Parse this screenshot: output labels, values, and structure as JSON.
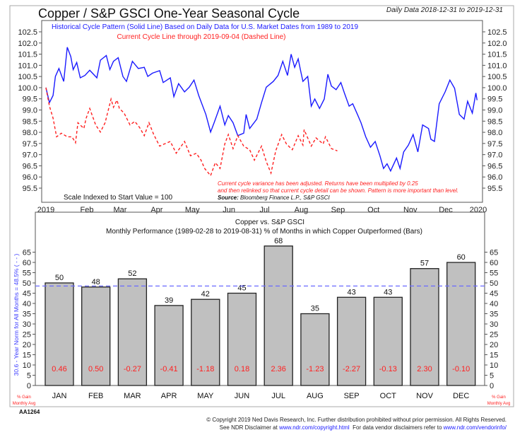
{
  "header": {
    "title": "Copper / S&P GSCI One-Year Seasonal Cycle",
    "date_range": "Daily Data 2018-12-31 to 2019-12-31"
  },
  "colors": {
    "historical": "#1a1aff",
    "current": "#ff2020",
    "bar": "#c0c0c0",
    "norm": "#6a6aff",
    "gain": "#ff2020"
  },
  "chart_data": [
    {
      "type": "line",
      "legend_historical": "Historical Cycle Pattern (Solid Line) Based on Daily Data for U.S. Market Dates from 1989 to 2019",
      "legend_current": "Current Cycle Line through 2019-09-04 (Dashed Line)",
      "scale_note": "Scale Indexed to Start Value = 100",
      "note_line1": "Current cycle variance has been adjusted. Returns have been multiplied by 0.25",
      "note_line2": "and then relinked so that current cycle detail can be shown. Pattern is more important than level.",
      "source_label": "Source:",
      "source_text": "Bloomberg Finance L.P., S&P GSCI",
      "xlim": [
        "2019-01-01",
        "2020-01-01"
      ],
      "ylim": [
        95.2,
        102.8
      ],
      "x_tick_labels": [
        "2019",
        "Feb",
        "Mar",
        "Apr",
        "May",
        "Jun",
        "Jul",
        "Aug",
        "Sep",
        "Oct",
        "Nov",
        "Dec",
        "2020"
      ],
      "y_tick_labels": [
        "102.5",
        "102.0",
        "101.5",
        "101.0",
        "100.5",
        "100.0",
        "99.5",
        "99.0",
        "98.5",
        "98.0",
        "97.5",
        "97.0",
        "96.5",
        "96.0",
        "95.5"
      ],
      "series": [
        {
          "style": "solid",
          "points": [
            [
              "2019-01-01",
              100.0
            ],
            [
              "2019-01-04",
              99.33
            ],
            [
              "2019-01-07",
              99.65
            ],
            [
              "2019-01-09",
              100.5
            ],
            [
              "2019-01-12",
              100.86
            ],
            [
              "2019-01-16",
              100.28
            ],
            [
              "2019-01-19",
              101.81
            ],
            [
              "2019-01-22",
              101.39
            ],
            [
              "2019-01-24",
              100.81
            ],
            [
              "2019-01-27",
              101.13
            ],
            [
              "2019-01-30",
              100.44
            ],
            [
              "2019-02-03",
              100.55
            ],
            [
              "2019-02-07",
              100.78
            ],
            [
              "2019-02-13",
              100.44
            ],
            [
              "2019-02-16",
              101.23
            ],
            [
              "2019-02-21",
              101.44
            ],
            [
              "2019-02-24",
              100.81
            ],
            [
              "2019-02-27",
              101.18
            ],
            [
              "2019-03-03",
              101.34
            ],
            [
              "2019-03-07",
              100.5
            ],
            [
              "2019-03-10",
              100.28
            ],
            [
              "2019-03-15",
              101.18
            ],
            [
              "2019-03-20",
              100.86
            ],
            [
              "2019-03-25",
              100.91
            ],
            [
              "2019-03-28",
              100.5
            ],
            [
              "2019-04-01",
              100.65
            ],
            [
              "2019-04-07",
              100.76
            ],
            [
              "2019-04-10",
              100.23
            ],
            [
              "2019-04-16",
              100.44
            ],
            [
              "2019-04-19",
              99.6
            ],
            [
              "2019-04-23",
              100.18
            ],
            [
              "2019-04-28",
              99.81
            ],
            [
              "2019-05-02",
              100.02
            ],
            [
              "2019-05-06",
              100.34
            ],
            [
              "2019-05-10",
              99.65
            ],
            [
              "2019-05-16",
              98.8
            ],
            [
              "2019-05-20",
              98.01
            ],
            [
              "2019-05-23",
              98.43
            ],
            [
              "2019-05-28",
              99.17
            ],
            [
              "2019-06-01",
              98.33
            ],
            [
              "2019-06-04",
              98.75
            ],
            [
              "2019-06-08",
              98.43
            ],
            [
              "2019-06-12",
              97.85
            ],
            [
              "2019-06-17",
              97.96
            ],
            [
              "2019-06-19",
              98.8
            ],
            [
              "2019-06-22",
              98.17
            ],
            [
              "2019-06-28",
              98.59
            ],
            [
              "2019-07-02",
              99.33
            ],
            [
              "2019-07-06",
              100.02
            ],
            [
              "2019-07-12",
              100.28
            ],
            [
              "2019-07-16",
              100.55
            ],
            [
              "2019-07-20",
              101.18
            ],
            [
              "2019-07-24",
              100.55
            ],
            [
              "2019-07-27",
              101.5
            ],
            [
              "2019-07-30",
              100.91
            ],
            [
              "2019-08-02",
              101.29
            ],
            [
              "2019-08-04",
              100.76
            ],
            [
              "2019-08-06",
              100.28
            ],
            [
              "2019-08-10",
              100.5
            ],
            [
              "2019-08-13",
              99.17
            ],
            [
              "2019-08-16",
              99.49
            ],
            [
              "2019-08-20",
              99.07
            ],
            [
              "2019-08-24",
              99.49
            ],
            [
              "2019-08-27",
              100.6
            ],
            [
              "2019-08-30",
              100.07
            ],
            [
              "2019-09-03",
              99.91
            ],
            [
              "2019-09-07",
              100.23
            ],
            [
              "2019-09-10",
              99.76
            ],
            [
              "2019-09-14",
              99.17
            ],
            [
              "2019-09-17",
              99.28
            ],
            [
              "2019-09-21",
              98.8
            ],
            [
              "2019-09-24",
              98.43
            ],
            [
              "2019-09-28",
              97.8
            ],
            [
              "2019-10-02",
              97.33
            ],
            [
              "2019-10-06",
              97.59
            ],
            [
              "2019-10-10",
              96.95
            ],
            [
              "2019-10-13",
              96.38
            ],
            [
              "2019-10-16",
              96.59
            ],
            [
              "2019-10-19",
              96.27
            ],
            [
              "2019-10-24",
              96.85
            ],
            [
              "2019-10-27",
              96.38
            ],
            [
              "2019-10-30",
              97.12
            ],
            [
              "2019-11-03",
              97.43
            ],
            [
              "2019-11-07",
              97.9
            ],
            [
              "2019-11-11",
              97.12
            ],
            [
              "2019-11-15",
              98.33
            ],
            [
              "2019-11-20",
              98.17
            ],
            [
              "2019-11-22",
              97.69
            ],
            [
              "2019-11-25",
              97.59
            ],
            [
              "2019-11-29",
              99.28
            ],
            [
              "2019-12-04",
              99.81
            ],
            [
              "2019-12-08",
              100.34
            ],
            [
              "2019-12-12",
              99.97
            ],
            [
              "2019-12-16",
              98.8
            ],
            [
              "2019-12-20",
              98.59
            ],
            [
              "2019-12-23",
              99.39
            ],
            [
              "2019-12-27",
              98.86
            ],
            [
              "2019-12-30",
              99.76
            ],
            [
              "2019-12-31",
              99.44
            ]
          ]
        },
        {
          "style": "dashed",
          "points": [
            [
              "2019-01-01",
              100.0
            ],
            [
              "2019-01-04",
              99.17
            ],
            [
              "2019-01-07",
              98.64
            ],
            [
              "2019-01-10",
              97.8
            ],
            [
              "2019-01-14",
              97.96
            ],
            [
              "2019-01-19",
              97.8
            ],
            [
              "2019-01-23",
              97.8
            ],
            [
              "2019-01-26",
              97.53
            ],
            [
              "2019-01-28",
              98.43
            ],
            [
              "2019-02-02",
              98.17
            ],
            [
              "2019-02-04",
              98.64
            ],
            [
              "2019-02-07",
              99.07
            ],
            [
              "2019-02-12",
              98.33
            ],
            [
              "2019-02-16",
              98.01
            ],
            [
              "2019-02-20",
              98.43
            ],
            [
              "2019-02-25",
              99.49
            ],
            [
              "2019-02-27",
              99.12
            ],
            [
              "2019-03-02",
              99.44
            ],
            [
              "2019-03-04",
              99.07
            ],
            [
              "2019-03-08",
              98.86
            ],
            [
              "2019-03-13",
              98.33
            ],
            [
              "2019-03-17",
              98.49
            ],
            [
              "2019-03-21",
              98.22
            ],
            [
              "2019-03-25",
              97.85
            ],
            [
              "2019-03-29",
              98.43
            ],
            [
              "2019-04-02",
              97.9
            ],
            [
              "2019-04-07",
              97.38
            ],
            [
              "2019-04-11",
              97.48
            ],
            [
              "2019-04-16",
              97.59
            ],
            [
              "2019-04-21",
              97.06
            ],
            [
              "2019-04-28",
              97.59
            ],
            [
              "2019-05-03",
              96.95
            ],
            [
              "2019-05-08",
              97.06
            ],
            [
              "2019-05-12",
              96.75
            ],
            [
              "2019-05-15",
              96.38
            ],
            [
              "2019-05-20",
              96.06
            ],
            [
              "2019-05-24",
              96.64
            ],
            [
              "2019-05-28",
              96.38
            ],
            [
              "2019-06-01",
              97.48
            ],
            [
              "2019-06-04",
              97.9
            ],
            [
              "2019-06-08",
              97.27
            ],
            [
              "2019-06-12",
              97.85
            ],
            [
              "2019-06-17",
              97.38
            ],
            [
              "2019-06-22",
              97.22
            ],
            [
              "2019-06-26",
              96.75
            ],
            [
              "2019-07-02",
              97.38
            ],
            [
              "2019-07-06",
              96.69
            ],
            [
              "2019-07-10",
              96.17
            ],
            [
              "2019-07-14",
              97.17
            ],
            [
              "2019-07-19",
              97.9
            ],
            [
              "2019-07-23",
              97.48
            ],
            [
              "2019-07-28",
              97.22
            ],
            [
              "2019-08-02",
              97.85
            ],
            [
              "2019-08-06",
              97.43
            ],
            [
              "2019-08-07",
              98.12
            ],
            [
              "2019-08-13",
              97.38
            ],
            [
              "2019-08-17",
              97.75
            ],
            [
              "2019-08-23",
              97.48
            ],
            [
              "2019-08-25",
              97.8
            ],
            [
              "2019-08-30",
              97.27
            ],
            [
              "2019-09-04",
              97.17
            ]
          ]
        }
      ]
    },
    {
      "type": "bar",
      "title": "Copper vs. S&P GSCI",
      "subtitle": "Monthly Performance (1989-02-28 to 2019-08-31) % of Months in which Copper Outperformed (Bars)",
      "ylabel": "30.6 - Year Norm for All Months = 48.5% ( - - )",
      "norm": 48.5,
      "ylim": [
        0,
        70
      ],
      "y_tick_labels": [
        "65",
        "60",
        "55",
        "50",
        "45",
        "40",
        "35",
        "30",
        "25",
        "20",
        "15",
        "10",
        "5",
        "0"
      ],
      "categories": [
        "JAN",
        "FEB",
        "MAR",
        "APR",
        "MAY",
        "JUN",
        "JUL",
        "AUG",
        "SEP",
        "OCT",
        "NOV",
        "DEC"
      ],
      "values": [
        50,
        48,
        52,
        39,
        42,
        45,
        68,
        35,
        43,
        43,
        57,
        60
      ],
      "value_labels": [
        "50",
        "48",
        "52",
        "39",
        "42",
        "45",
        "68",
        "35",
        "43",
        "43",
        "57",
        "60"
      ],
      "gain_labels": [
        "0.46",
        "0.50",
        "-0.27",
        "-0.41",
        "-1.18",
        "0.18",
        "2.36",
        "-1.23",
        "-2.27",
        "-0.13",
        "2.30",
        "-0.10"
      ],
      "gain_axis_line1": "% Gain",
      "gain_axis_line2": "Monthly Avg"
    }
  ],
  "footer": {
    "code": "AA1264",
    "copyright": "© Copyright 2019 Ned Davis Research, Inc. Further distribution prohibited without prior permission. All Rights Reserved.",
    "disclaimer_prefix": "See NDR Disclaimer at ",
    "disclaimer_link": "www.ndr.com/copyright.html",
    "vendor_prefix": "  For data vendor disclaimers refer to ",
    "vendor_link": "www.ndr.com/vendorinfo/"
  }
}
